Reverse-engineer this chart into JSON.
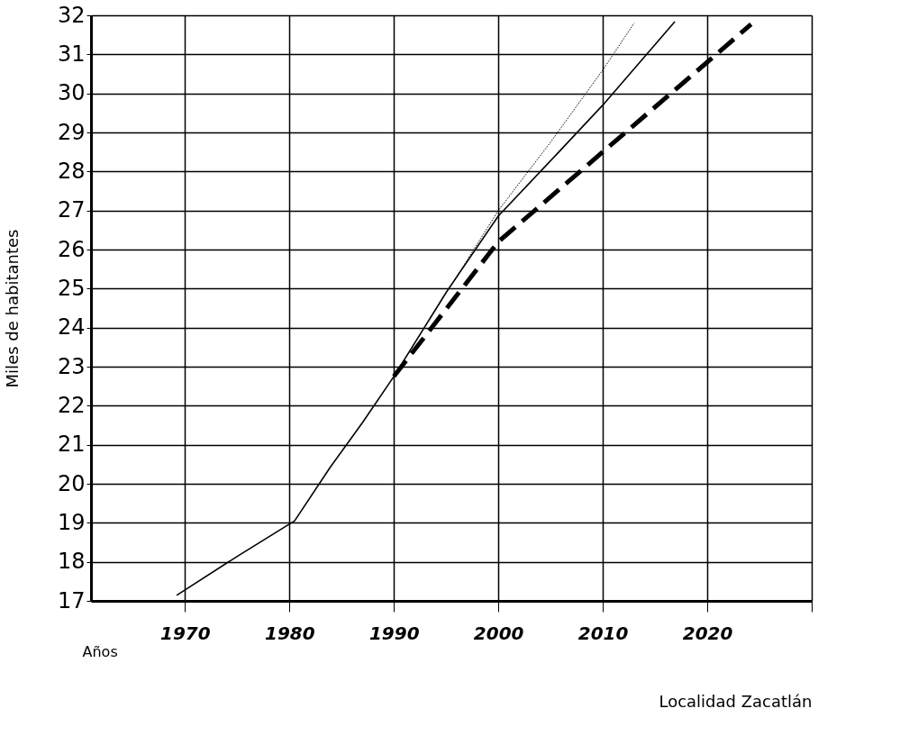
{
  "chart_data": {
    "type": "line",
    "xlabel": "Años",
    "ylabel": "Miles de habitantes",
    "annotations": [
      "Localidad  Zacatlán"
    ],
    "xlim": [
      1961,
      2030
    ],
    "ylim": [
      17,
      32
    ],
    "xticks": [
      1970,
      1980,
      1990,
      2000,
      2010,
      2020,
      {
        "value": 2030,
        "label": null
      }
    ],
    "yticks": [
      17,
      18,
      19,
      20,
      21,
      22,
      23,
      24,
      25,
      26,
      27,
      28,
      29,
      30,
      31,
      32
    ],
    "grid": true,
    "marker": "none",
    "series": [
      {
        "color": "#000000",
        "line_style": "solid",
        "x": [
          1969.2,
          1975,
          1980.5,
          1983.9,
          1987,
          1990,
          1995,
          2000,
          2005.9,
          2010,
          2016.9
        ],
        "values": [
          17.14,
          18.14,
          19.05,
          20.42,
          21.57,
          22.75,
          24.9,
          26.86,
          28.53,
          29.7,
          31.84
        ]
      },
      {
        "color": "#000000",
        "line_style": "dotted",
        "x": [
          1990,
          2000,
          2005,
          2010,
          2013
        ],
        "values": [
          22.75,
          27.0,
          28.75,
          30.6,
          31.8
        ]
      },
      {
        "color": "#000000",
        "line_style": "dashed",
        "x": [
          1990,
          2000,
          2010,
          2020,
          2024.2
        ],
        "values": [
          22.75,
          26.2,
          28.5,
          30.8,
          31.77
        ]
      }
    ]
  }
}
